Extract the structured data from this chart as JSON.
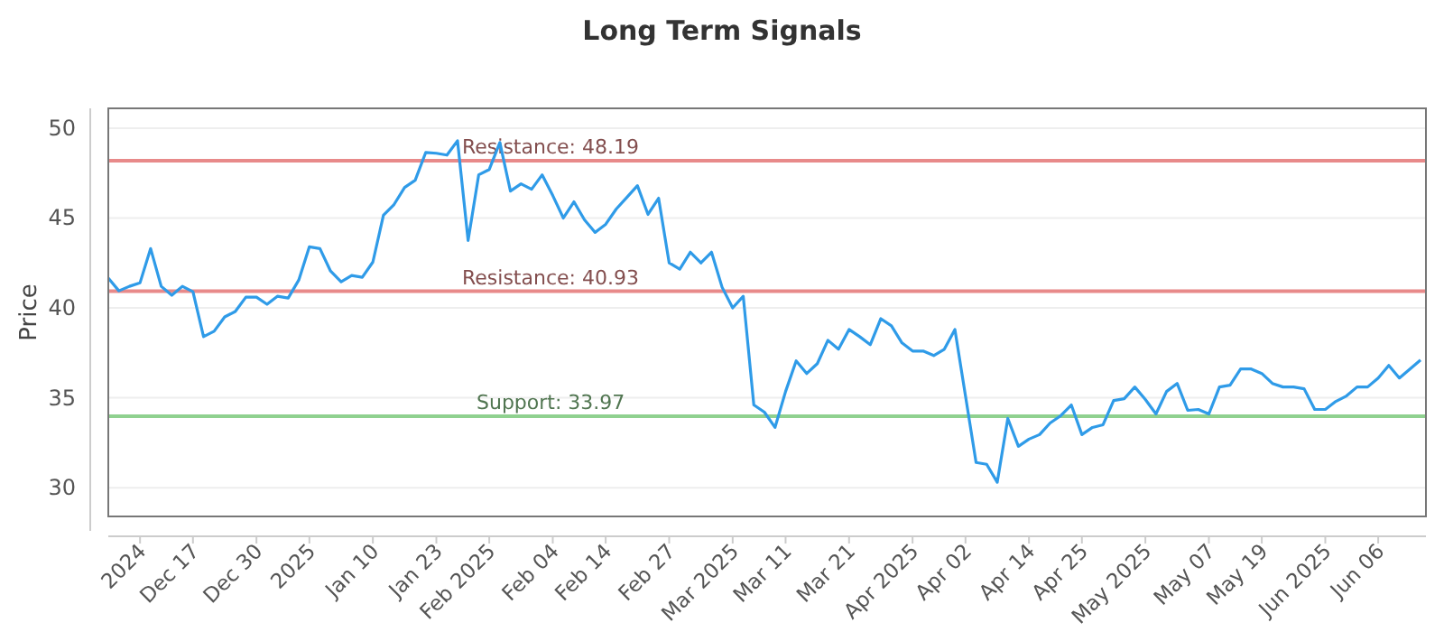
{
  "chart_data": {
    "type": "line",
    "title": "Long Term Signals",
    "ylabel": "Price",
    "categories": [
      null,
      null,
      null,
      "2024",
      null,
      null,
      null,
      null,
      "Dec 17",
      null,
      null,
      null,
      null,
      null,
      "Dec 30",
      null,
      null,
      null,
      null,
      "2025",
      null,
      null,
      null,
      null,
      null,
      "Jan 10",
      null,
      null,
      null,
      null,
      null,
      "Jan 23",
      null,
      null,
      null,
      null,
      "Feb 2025",
      null,
      null,
      null,
      null,
      null,
      "Feb 04",
      null,
      null,
      null,
      null,
      "Feb 14",
      null,
      null,
      null,
      null,
      null,
      "Feb 27",
      null,
      null,
      null,
      null,
      null,
      "Mar 2025",
      null,
      null,
      null,
      null,
      "Mar 11",
      null,
      null,
      null,
      null,
      null,
      "Mar 21",
      null,
      null,
      null,
      null,
      null,
      "Apr 2025",
      null,
      null,
      null,
      null,
      "Apr 02",
      null,
      null,
      null,
      null,
      null,
      "Apr 14",
      null,
      null,
      null,
      null,
      "Apr 25",
      null,
      null,
      null,
      null,
      null,
      "May 2025",
      null,
      null,
      null,
      null,
      null,
      "May 07",
      null,
      null,
      null,
      null,
      "May 19",
      null,
      null,
      null,
      null,
      null,
      "Jun 2025",
      null,
      null,
      null,
      null,
      "Jun 06",
      null,
      null,
      null,
      null
    ],
    "series": [
      {
        "color": "#2f9be8",
        "values": [
          41.66,
          40.95,
          41.2,
          41.4,
          43.3,
          41.2,
          40.7,
          41.2,
          40.9,
          38.4,
          38.7,
          39.5,
          39.8,
          40.6,
          40.6,
          40.2,
          40.65,
          40.55,
          41.55,
          43.4,
          43.3,
          42.05,
          41.45,
          41.8,
          41.7,
          42.55,
          45.15,
          45.75,
          46.7,
          47.1,
          48.65,
          48.6,
          48.5,
          49.3,
          43.75,
          47.4,
          47.7,
          49.2,
          46.5,
          46.9,
          46.6,
          47.4,
          46.25,
          45.0,
          45.9,
          44.9,
          44.2,
          44.65,
          45.5,
          46.15,
          46.8,
          45.2,
          46.1,
          42.5,
          42.15,
          43.1,
          42.5,
          43.1,
          41.15,
          40.0,
          40.65,
          34.6,
          34.2,
          33.35,
          35.35,
          37.05,
          36.35,
          36.9,
          38.2,
          37.7,
          38.8,
          38.4,
          37.95,
          39.4,
          39.0,
          38.05,
          37.6,
          37.6,
          37.35,
          37.7,
          38.8,
          35.1,
          31.4,
          31.3,
          30.3,
          33.85,
          32.3,
          32.7,
          32.95,
          33.6,
          34.0,
          34.6,
          32.95,
          33.35,
          33.5,
          34.85,
          34.95,
          35.6,
          34.9,
          34.1,
          35.35,
          35.8,
          34.3,
          34.35,
          34.1,
          35.6,
          35.7,
          36.6,
          36.6,
          36.35,
          35.8,
          35.6,
          35.6,
          35.5,
          34.35,
          34.35,
          34.8,
          35.1,
          35.6,
          35.6,
          36.1,
          36.8,
          36.1,
          36.6,
          37.1
        ]
      }
    ],
    "ylim": [
      28.4,
      51.1
    ],
    "yticks": [
      30,
      35,
      40,
      45,
      50
    ],
    "grid": "y",
    "ref_lines": [
      {
        "axis": "y",
        "value": 48.19,
        "label": "Resistance: 48.19",
        "color": "#e88a8a"
      },
      {
        "axis": "y",
        "value": 40.93,
        "label": "Resistance: 40.93",
        "color": "#e88a8a"
      },
      {
        "axis": "y",
        "value": 33.97,
        "label": "Support: 33.97",
        "color": "#8fd18f"
      }
    ]
  }
}
